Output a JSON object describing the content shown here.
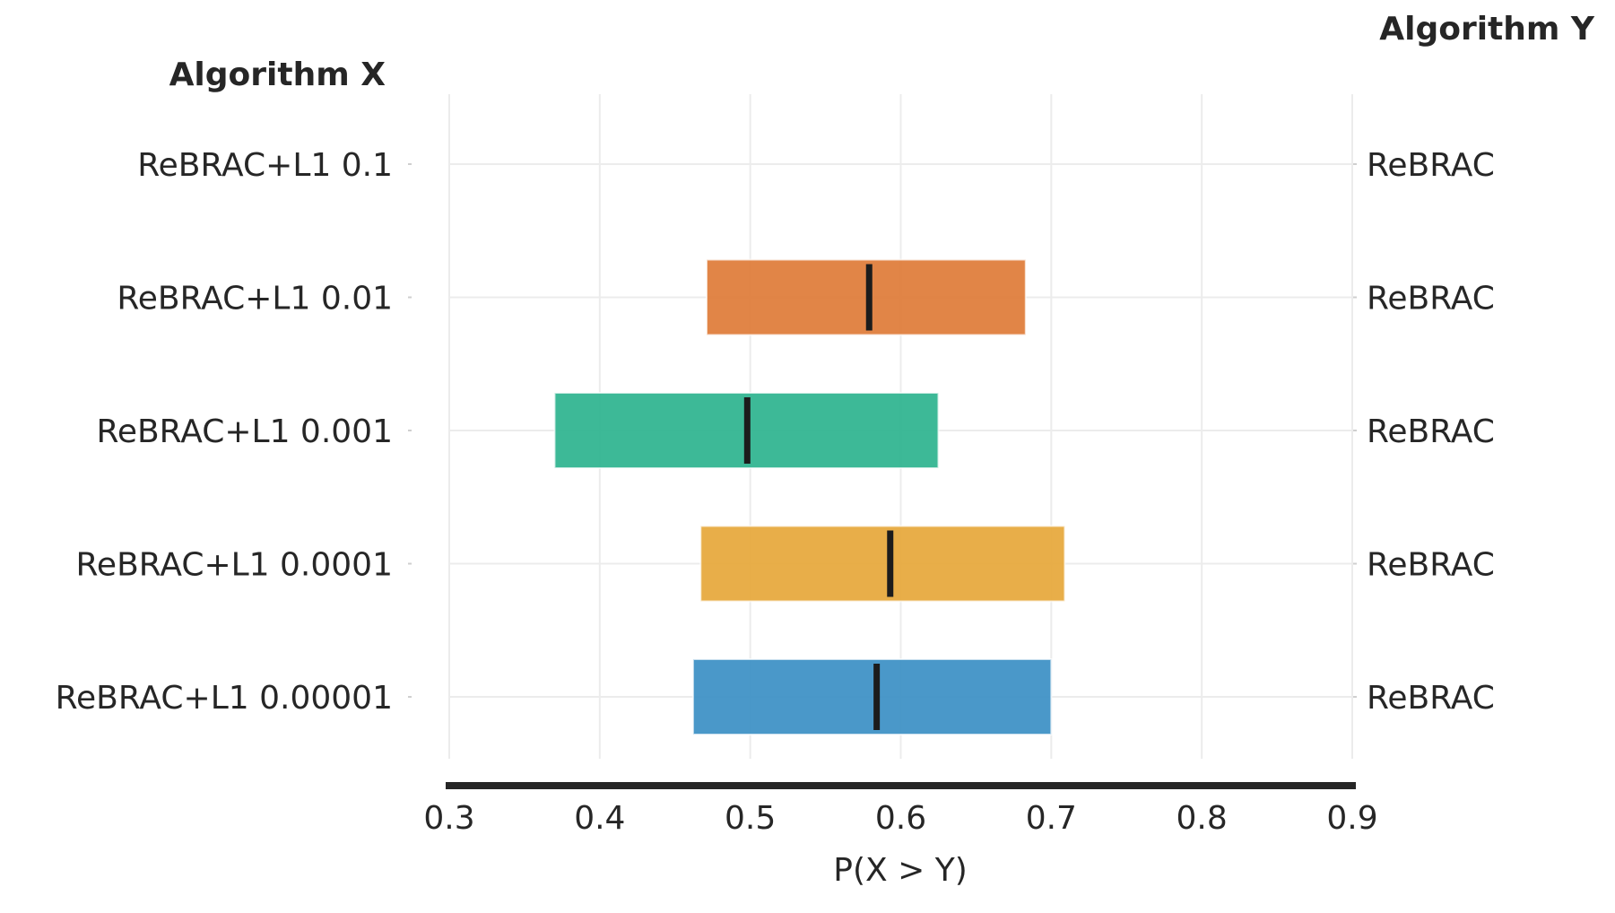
{
  "chart_data": {
    "type": "interval",
    "left_header": "Algorithm X",
    "right_header": "Algorithm Y",
    "xlabel": "P(X > Y)",
    "xlim": [
      0.3,
      0.9
    ],
    "xticks": [
      0.3,
      0.4,
      0.5,
      0.6,
      0.7,
      0.8,
      0.9
    ],
    "xtick_labels": [
      "0.3",
      "0.4",
      "0.5",
      "0.6",
      "0.7",
      "0.8",
      "0.9"
    ],
    "rows": [
      {
        "x_label": "ReBRAC+L1 0.1",
        "y_label": "ReBRAC",
        "low": null,
        "high": null,
        "point": null,
        "color": null
      },
      {
        "x_label": "ReBRAC+L1 0.01",
        "y_label": "ReBRAC",
        "low": 0.471,
        "high": 0.683,
        "point": 0.579,
        "color": "#de7b37"
      },
      {
        "x_label": "ReBRAC+L1 0.001",
        "y_label": "ReBRAC",
        "low": 0.37,
        "high": 0.625,
        "point": 0.498,
        "color": "#2db38e"
      },
      {
        "x_label": "ReBRAC+L1 0.0001",
        "y_label": "ReBRAC",
        "low": 0.467,
        "high": 0.709,
        "point": 0.593,
        "color": "#e6a73a"
      },
      {
        "x_label": "ReBRAC+L1 0.00001",
        "y_label": "ReBRAC",
        "low": 0.462,
        "high": 0.7,
        "point": 0.584,
        "color": "#3b8fc4"
      }
    ]
  }
}
